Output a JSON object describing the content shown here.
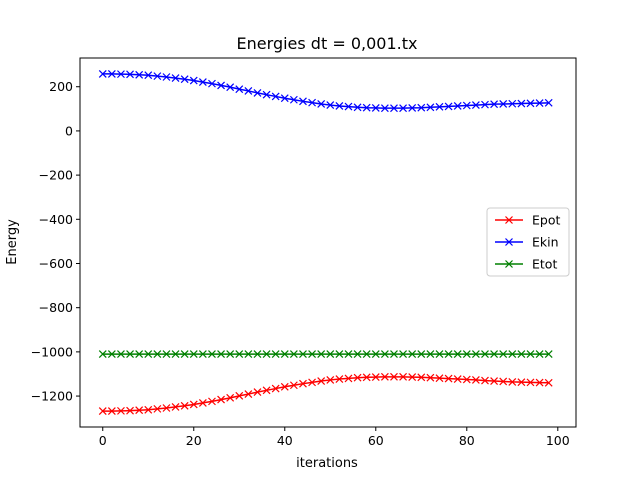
{
  "chart_data": {
    "type": "line",
    "title": "Energies dt = 0,001.tx",
    "xlabel": "iterations",
    "ylabel": "Energy",
    "xlim": [
      -5,
      104
    ],
    "ylim": [
      -1340,
      330
    ],
    "xticks": [
      0,
      20,
      40,
      60,
      80,
      100
    ],
    "yticks": [
      -1200,
      -1000,
      -800,
      -600,
      -400,
      -200,
      0,
      200
    ],
    "grid": false,
    "legend_position": "center-right",
    "marker": "x",
    "x": [
      0,
      2,
      4,
      6,
      8,
      10,
      12,
      14,
      16,
      18,
      20,
      22,
      24,
      26,
      28,
      30,
      32,
      34,
      36,
      38,
      40,
      42,
      44,
      46,
      48,
      50,
      52,
      54,
      56,
      58,
      60,
      62,
      64,
      66,
      68,
      70,
      72,
      74,
      76,
      78,
      80,
      82,
      84,
      86,
      88,
      90,
      92,
      94,
      96,
      98
    ],
    "series": [
      {
        "name": "Epot",
        "color": "#ff0000",
        "values": [
          -1268,
          -1268,
          -1267,
          -1266,
          -1264,
          -1262,
          -1258,
          -1254,
          -1249,
          -1244,
          -1238,
          -1231,
          -1224,
          -1216,
          -1208,
          -1199,
          -1191,
          -1182,
          -1174,
          -1166,
          -1158,
          -1151,
          -1144,
          -1138,
          -1132,
          -1127,
          -1123,
          -1120,
          -1117,
          -1115,
          -1114,
          -1113,
          -1113,
          -1113,
          -1114,
          -1115,
          -1117,
          -1119,
          -1121,
          -1123,
          -1125,
          -1127,
          -1130,
          -1132,
          -1134,
          -1136,
          -1137,
          -1138,
          -1139,
          -1140
        ]
      },
      {
        "name": "Ekin",
        "color": "#0000ff",
        "values": [
          258,
          258,
          257,
          256,
          254,
          252,
          248,
          244,
          239,
          234,
          228,
          221,
          214,
          206,
          198,
          189,
          181,
          172,
          164,
          156,
          148,
          141,
          134,
          128,
          122,
          117,
          113,
          110,
          107,
          105,
          104,
          103,
          103,
          103,
          104,
          105,
          107,
          109,
          111,
          113,
          115,
          117,
          119,
          121,
          122,
          123,
          124,
          125,
          126,
          127
        ]
      },
      {
        "name": "Etot",
        "color": "#008000",
        "values": [
          -1010,
          -1010,
          -1010,
          -1010,
          -1010,
          -1010,
          -1010,
          -1010,
          -1010,
          -1010,
          -1010,
          -1010,
          -1010,
          -1010,
          -1010,
          -1010,
          -1010,
          -1010,
          -1010,
          -1010,
          -1010,
          -1010,
          -1010,
          -1010,
          -1010,
          -1010,
          -1010,
          -1010,
          -1010,
          -1010,
          -1010,
          -1010,
          -1010,
          -1010,
          -1010,
          -1010,
          -1010,
          -1010,
          -1010,
          -1010,
          -1010,
          -1010,
          -1010,
          -1010,
          -1010,
          -1010,
          -1010,
          -1010,
          -1010,
          -1010
        ]
      }
    ]
  }
}
